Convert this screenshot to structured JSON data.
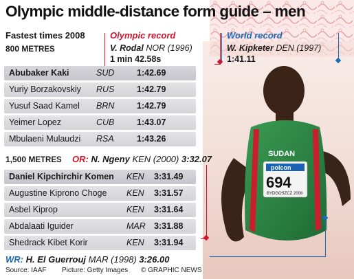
{
  "title": "Olympic middle-distance form guide – men",
  "subtitle": "Fastest times 2008",
  "sections": {
    "m800": {
      "heading": "800 M",
      "heading_rest": "ETRES",
      "rows": [
        {
          "name": "Abubaker Kaki",
          "nat": "SUD",
          "time": "1:42.69"
        },
        {
          "name": "Yuriy Borzakovskiy",
          "nat": "RUS",
          "time": "1:42.79"
        },
        {
          "name": "Yusuf Saad Kamel",
          "nat": "BRN",
          "time": "1:42.79"
        },
        {
          "name": "Yeimer Lopez",
          "nat": "CUB",
          "time": "1:43.07"
        },
        {
          "name": "Mbulaeni Mulaudzi",
          "nat": "RSA",
          "time": "1:43.26"
        }
      ]
    },
    "m1500": {
      "heading": "1,500 M",
      "heading_rest": "ETRES",
      "or_label": "OR:",
      "or_holder": "N. Ngeny",
      "or_detail": "KEN (2000)",
      "or_time": "3:32.07",
      "rows": [
        {
          "name": "Daniel Kipchirchir Komen",
          "nat": "KEN",
          "time": "3:31.49"
        },
        {
          "name": "Augustine Kiprono Choge",
          "nat": "KEN",
          "time": "3:31.57"
        },
        {
          "name": "Asbel Kiprop",
          "nat": "KEN",
          "time": "3:31.64"
        },
        {
          "name": "Abdalaati Iguider",
          "nat": "MAR",
          "time": "3:31.88"
        },
        {
          "name": "Shedrack Kibet Korir",
          "nat": "KEN",
          "time": "3:31.94"
        }
      ],
      "wr_label": "WR:",
      "wr_holder": "H. El Guerrouj",
      "wr_detail": "MAR (1998)",
      "wr_time": "3:26.00"
    }
  },
  "olympic_record": {
    "label": "Olympic record",
    "holder": "V. Rodal",
    "detail": "NOR (1996)",
    "time": "1 min 42.58s"
  },
  "world_record": {
    "label": "World record",
    "holder": "W. Kipketer",
    "detail": "DEN (1997)",
    "time": "1:41.11"
  },
  "photo": {
    "bib_brand": "polcon",
    "bib_number": "694",
    "bib_event": "BYDGOSZCZ 2008",
    "shirt_text": "SUDAN"
  },
  "footer": {
    "source": "Source: IAAF",
    "picture": "Picture: Getty Images",
    "credit": "© GRAPHIC NEWS"
  },
  "colors": {
    "olympic_red": "#d0142c",
    "world_blue": "#1a6ab5",
    "row_gray": "#dcdce0"
  }
}
